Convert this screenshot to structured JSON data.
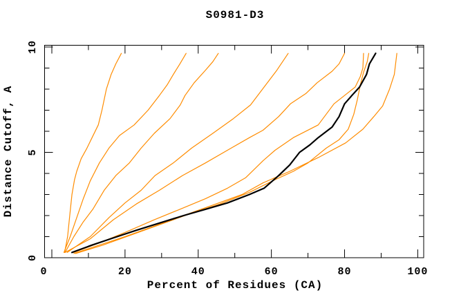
{
  "window": {
    "background": "#ffffff"
  },
  "chart_data": {
    "type": "line",
    "title": "S0981-D3",
    "xlabel": "Percent of Residues (CA)",
    "ylabel": "Distance Cutoff, A",
    "xlim": [
      0,
      100
    ],
    "ylim": [
      0,
      10
    ],
    "grid": false,
    "legend": null,
    "x_major_ticks": [
      0,
      20,
      40,
      60,
      80,
      100
    ],
    "x_minor_ticks": [
      10,
      30,
      50,
      70,
      90
    ],
    "y_major_ticks": [
      0,
      5,
      10
    ],
    "y_minor_ticks": [
      1,
      2,
      3,
      4,
      6,
      7,
      8,
      9
    ],
    "x_tick_labels": [
      "0",
      "20",
      "40",
      "60",
      "80",
      "100"
    ],
    "y_tick_labels": [
      "0",
      "5",
      "10"
    ],
    "colors": {
      "model_line": "#000000",
      "other_lines": "#ff8c00"
    },
    "series": [
      {
        "name": "orange-1",
        "color": "#ff8c00",
        "width": 1.2,
        "emphasis": false,
        "points": [
          [
            3.5,
            0.25
          ],
          [
            4.3,
            1.0
          ],
          [
            4.9,
            2.0
          ],
          [
            5.5,
            3.0
          ],
          [
            6.2,
            3.7
          ],
          [
            6.8,
            4.1
          ],
          [
            8.0,
            4.7
          ],
          [
            9.6,
            5.2
          ],
          [
            11.0,
            5.7
          ],
          [
            12.7,
            6.3
          ],
          [
            13.7,
            7.0
          ],
          [
            14.9,
            8.0
          ],
          [
            16.2,
            8.7
          ],
          [
            17.5,
            9.2
          ],
          [
            19.0,
            9.7
          ]
        ]
      },
      {
        "name": "orange-2",
        "color": "#ff8c00",
        "width": 1.2,
        "emphasis": false,
        "points": [
          [
            3.3,
            0.25
          ],
          [
            5.0,
            1.0
          ],
          [
            6.8,
            1.9
          ],
          [
            8.6,
            2.8
          ],
          [
            10.5,
            3.65
          ],
          [
            13.0,
            4.5
          ],
          [
            15.6,
            5.2
          ],
          [
            18.5,
            5.8
          ],
          [
            22.5,
            6.3
          ],
          [
            26.3,
            7.0
          ],
          [
            29.4,
            7.7
          ],
          [
            31.5,
            8.2
          ],
          [
            33.2,
            8.7
          ],
          [
            35.0,
            9.2
          ],
          [
            36.7,
            9.7
          ]
        ]
      },
      {
        "name": "orange-3",
        "color": "#ff8c00",
        "width": 1.2,
        "emphasis": false,
        "points": [
          [
            3.6,
            0.25
          ],
          [
            6.0,
            1.0
          ],
          [
            8.6,
            1.7
          ],
          [
            11.2,
            2.3
          ],
          [
            14.3,
            3.2
          ],
          [
            17.5,
            3.9
          ],
          [
            21.2,
            4.5
          ],
          [
            24.4,
            5.2
          ],
          [
            28.0,
            5.9
          ],
          [
            32.3,
            6.6
          ],
          [
            35.1,
            7.25
          ],
          [
            36.4,
            7.7
          ],
          [
            38.9,
            8.3
          ],
          [
            42.0,
            8.9
          ],
          [
            44.0,
            9.3
          ],
          [
            45.5,
            9.7
          ]
        ]
      },
      {
        "name": "orange-4",
        "color": "#ff8c00",
        "width": 1.2,
        "emphasis": false,
        "points": [
          [
            4.2,
            0.25
          ],
          [
            10.5,
            1.0
          ],
          [
            15.6,
            1.9
          ],
          [
            20.0,
            2.6
          ],
          [
            24.4,
            3.2
          ],
          [
            28.2,
            3.9
          ],
          [
            33.2,
            4.5
          ],
          [
            38.2,
            5.2
          ],
          [
            44.0,
            5.9
          ],
          [
            49.6,
            6.6
          ],
          [
            54.3,
            7.25
          ],
          [
            58.0,
            8.1
          ],
          [
            61.5,
            8.9
          ],
          [
            64.6,
            9.7
          ]
        ]
      },
      {
        "name": "orange-5",
        "color": "#ff8c00",
        "width": 1.2,
        "emphasis": false,
        "points": [
          [
            3.6,
            0.25
          ],
          [
            10.5,
            0.9
          ],
          [
            16.8,
            1.8
          ],
          [
            23.1,
            2.55
          ],
          [
            29.4,
            3.2
          ],
          [
            35.7,
            3.9
          ],
          [
            42.0,
            4.5
          ],
          [
            49.0,
            5.2
          ],
          [
            54.0,
            5.7
          ],
          [
            57.7,
            6.05
          ],
          [
            62.0,
            6.7
          ],
          [
            65.2,
            7.3
          ],
          [
            69.5,
            7.8
          ],
          [
            72.5,
            8.3
          ],
          [
            76.6,
            8.85
          ],
          [
            78.5,
            9.2
          ],
          [
            80.0,
            9.7
          ]
        ]
      },
      {
        "name": "orange-6",
        "color": "#ff8c00",
        "width": 1.2,
        "emphasis": false,
        "points": [
          [
            6.0,
            0.25
          ],
          [
            13.0,
            0.7
          ],
          [
            20.0,
            1.2
          ],
          [
            28.0,
            1.8
          ],
          [
            35.0,
            2.3
          ],
          [
            42.0,
            2.8
          ],
          [
            48.0,
            3.3
          ],
          [
            53.0,
            3.8
          ],
          [
            57.7,
            4.6
          ],
          [
            61.0,
            5.1
          ],
          [
            66.0,
            5.7
          ],
          [
            72.8,
            6.3
          ],
          [
            77.1,
            7.3
          ],
          [
            80.0,
            7.7
          ],
          [
            82.9,
            8.1
          ],
          [
            84.3,
            8.6
          ],
          [
            85.0,
            9.0
          ],
          [
            85.2,
            9.7
          ]
        ]
      },
      {
        "name": "orange-7",
        "color": "#ff8c00",
        "width": 1.2,
        "emphasis": false,
        "points": [
          [
            6.0,
            0.2
          ],
          [
            13.0,
            0.6
          ],
          [
            20.0,
            1.0
          ],
          [
            28.0,
            1.5
          ],
          [
            36.0,
            2.0
          ],
          [
            44.0,
            2.5
          ],
          [
            52.0,
            3.0
          ],
          [
            57.7,
            3.55
          ],
          [
            65.0,
            4.1
          ],
          [
            72.8,
            4.75
          ],
          [
            80.3,
            5.45
          ],
          [
            85.0,
            6.1
          ],
          [
            88.0,
            6.7
          ],
          [
            90.4,
            7.2
          ],
          [
            92.3,
            8.0
          ],
          [
            93.6,
            8.7
          ],
          [
            94.3,
            9.7
          ]
        ]
      },
      {
        "name": "orange-8",
        "color": "#ff8c00",
        "width": 1.2,
        "emphasis": false,
        "points": [
          [
            6.5,
            0.2
          ],
          [
            14.0,
            0.6
          ],
          [
            22.0,
            1.1
          ],
          [
            30.0,
            1.6
          ],
          [
            38.0,
            2.1
          ],
          [
            46.0,
            2.55
          ],
          [
            54.0,
            3.1
          ],
          [
            61.0,
            3.7
          ],
          [
            66.0,
            4.1
          ],
          [
            70.0,
            4.5
          ],
          [
            75.0,
            5.2
          ],
          [
            78.5,
            5.6
          ],
          [
            81.0,
            6.1
          ],
          [
            82.5,
            6.8
          ],
          [
            83.5,
            7.5
          ],
          [
            84.3,
            8.2
          ],
          [
            85.2,
            8.8
          ],
          [
            86.2,
            9.3
          ],
          [
            86.6,
            9.7
          ]
        ]
      },
      {
        "name": "black-model",
        "color": "#000000",
        "width": 2.2,
        "emphasis": true,
        "points": [
          [
            5.5,
            0.25
          ],
          [
            11.0,
            0.6
          ],
          [
            17.0,
            0.95
          ],
          [
            23.0,
            1.3
          ],
          [
            29.5,
            1.65
          ],
          [
            36.0,
            2.0
          ],
          [
            42.0,
            2.3
          ],
          [
            48.0,
            2.6
          ],
          [
            54.0,
            3.0
          ],
          [
            58.0,
            3.3
          ],
          [
            62.0,
            3.9
          ],
          [
            65.0,
            4.4
          ],
          [
            67.7,
            5.0
          ],
          [
            70.5,
            5.35
          ],
          [
            72.8,
            5.7
          ],
          [
            76.6,
            6.2
          ],
          [
            78.5,
            6.7
          ],
          [
            80.0,
            7.3
          ],
          [
            82.0,
            7.7
          ],
          [
            84.1,
            8.1
          ],
          [
            86.0,
            8.7
          ],
          [
            86.8,
            9.2
          ],
          [
            88.5,
            9.7
          ]
        ]
      }
    ]
  }
}
